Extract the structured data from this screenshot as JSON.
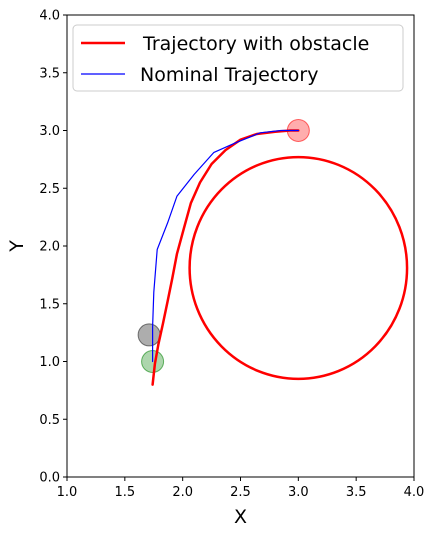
{
  "chart_data": {
    "type": "line",
    "xlabel": "X",
    "ylabel": "Y",
    "xlim": [
      1.0,
      4.0
    ],
    "ylim": [
      0.0,
      4.0
    ],
    "xticks": [
      "1.0",
      "1.5",
      "2.0",
      "2.5",
      "3.0",
      "3.5",
      "4.0"
    ],
    "yticks": [
      "0.0",
      "0.5",
      "1.0",
      "1.5",
      "2.0",
      "2.5",
      "3.0",
      "3.5",
      "4.0"
    ],
    "grid": false,
    "legend_position": "top-left",
    "series": [
      {
        "name": " Trajectory with obstacle",
        "color": "#ff0000",
        "x": [
          1.74,
          1.76,
          1.79,
          1.83,
          1.87,
          1.91,
          1.95,
          2.01,
          2.07,
          2.15,
          2.25,
          2.37,
          2.5,
          2.64,
          2.8,
          2.93,
          3.0
        ],
        "y": [
          0.8,
          0.98,
          1.15,
          1.33,
          1.52,
          1.72,
          1.93,
          2.15,
          2.37,
          2.55,
          2.71,
          2.83,
          2.92,
          2.97,
          2.99,
          3.0,
          3.0
        ]
      },
      {
        "name": "Nominal Trajectory",
        "color": "#0000ff",
        "x": [
          1.74,
          1.74,
          1.75,
          1.78,
          1.87,
          1.95,
          2.1,
          2.27,
          2.45,
          2.67,
          2.85,
          3.0
        ],
        "y": [
          1.0,
          1.3,
          1.6,
          1.97,
          2.2,
          2.43,
          2.62,
          2.81,
          2.89,
          2.98,
          3.0,
          3.0
        ]
      }
    ],
    "loop": {
      "series": " Trajectory with obstacle",
      "color": "#ff0000",
      "center_x": 3.0,
      "center_y": 1.81,
      "radius_x": 0.94,
      "radius_y": 0.96
    },
    "markers": [
      {
        "name": "goal",
        "x": 3.0,
        "y": 3.0,
        "color": "#ff0000",
        "opacity": 0.32
      },
      {
        "name": "start",
        "x": 1.74,
        "y": 1.0,
        "color": "#008000",
        "opacity": 0.32
      },
      {
        "name": "obstacle",
        "x": 1.71,
        "y": 1.23,
        "color": "#333333",
        "opacity": 0.4
      }
    ]
  }
}
